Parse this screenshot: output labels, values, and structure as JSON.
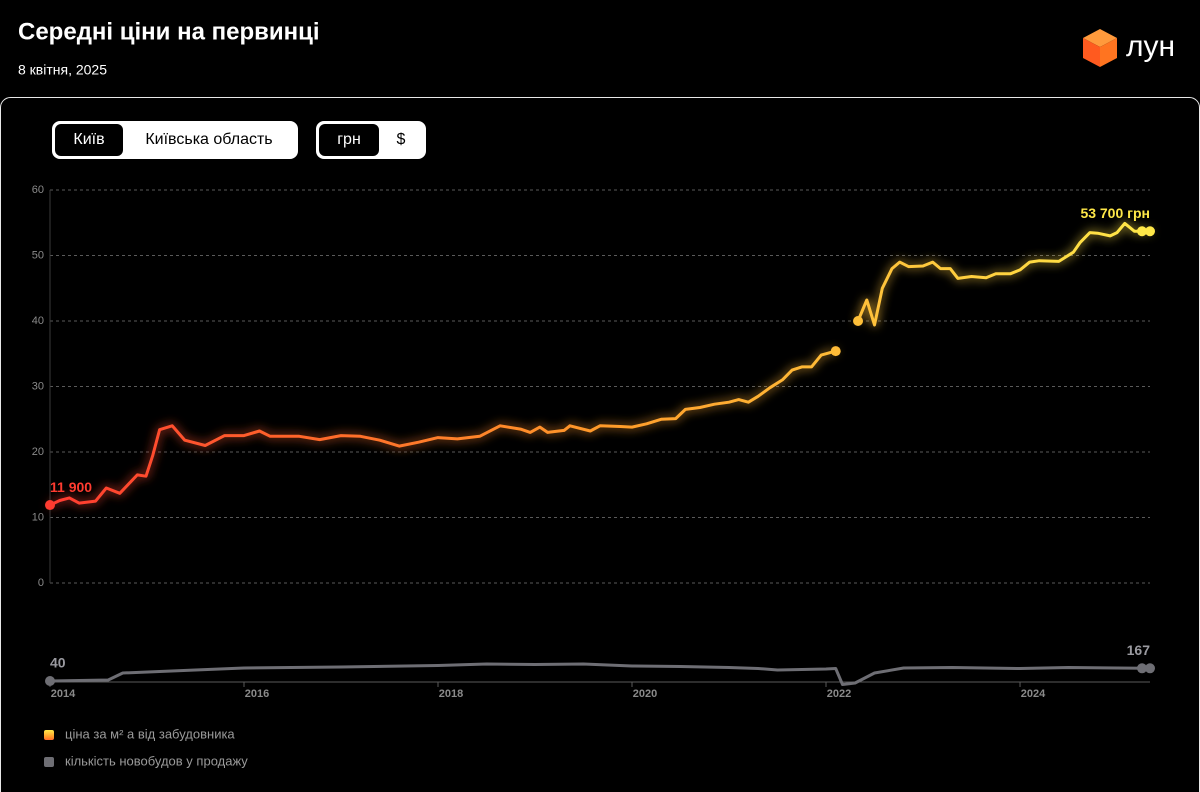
{
  "header": {
    "title": "Середні ціни на первинці",
    "date": "8 квітня, 2025",
    "logo": "лун"
  },
  "filters": {
    "region": [
      "Київ",
      "Київська область"
    ],
    "currency": [
      "грн",
      "$"
    ]
  },
  "chart_data": [
    {
      "type": "line",
      "grid": true,
      "xlim": [
        2014,
        2025.34
      ],
      "ylim": [
        0,
        60
      ],
      "yticks": [
        0,
        10,
        20,
        30,
        40,
        50,
        60
      ],
      "x": [
        2014.0,
        2014.1,
        2014.2,
        2014.3,
        2014.47,
        2014.58,
        2014.72,
        2014.9,
        2014.99,
        2015.06,
        2015.13,
        2015.26,
        2015.39,
        2015.6,
        2015.8,
        2016.0,
        2016.16,
        2016.27,
        2016.57,
        2016.78,
        2017.0,
        2017.2,
        2017.4,
        2017.6,
        2017.8,
        2018.0,
        2018.2,
        2018.43,
        2018.64,
        2018.85,
        2018.95,
        2019.05,
        2019.13,
        2019.3,
        2019.36,
        2019.57,
        2019.67,
        2019.88,
        2020.0,
        2020.15,
        2020.3,
        2020.45,
        2020.55,
        2020.7,
        2020.85,
        2021.0,
        2021.1,
        2021.2,
        2021.3,
        2021.42,
        2021.55,
        2021.65,
        2021.75,
        2021.85,
        2021.95,
        2022.1,
        2022.2,
        2022.33,
        2022.42,
        2022.5,
        2022.58,
        2022.68,
        2022.76,
        2022.85,
        2023.0,
        2023.1,
        2023.18,
        2023.28,
        2023.36,
        2023.5,
        2023.65,
        2023.75,
        2023.9,
        2024.0,
        2024.1,
        2024.2,
        2024.4,
        2024.55,
        2024.62,
        2024.72,
        2024.8,
        2024.93,
        2025.0,
        2025.08,
        2025.18,
        2025.34
      ],
      "series": [
        {
          "name": "ціна за м² а від забудовника",
          "gradient": [
            "#ff3b30",
            "#ff6a2b",
            "#ff9a2a",
            "#ffc23a",
            "#ffe848"
          ],
          "values": [
            11.9,
            12.6,
            13.0,
            12.2,
            12.5,
            14.5,
            13.7,
            16.5,
            16.3,
            19.5,
            23.4,
            24.0,
            21.8,
            21.0,
            22.5,
            22.5,
            23.2,
            22.4,
            22.4,
            21.9,
            22.5,
            22.4,
            21.8,
            20.9,
            21.5,
            22.2,
            22.0,
            22.4,
            24.0,
            23.5,
            23.0,
            23.8,
            23.0,
            23.3,
            24.0,
            23.2,
            24.0,
            23.9,
            23.8,
            24.3,
            25.0,
            25.1,
            26.5,
            26.8,
            27.3,
            27.6,
            28.0,
            27.6,
            28.5,
            29.8,
            31.0,
            32.5,
            33.0,
            33.0,
            34.8,
            35.4,
            null,
            40.0,
            43.2,
            39.4,
            45.0,
            48.0,
            49.0,
            48.3,
            48.4,
            49.0,
            48.0,
            48.0,
            46.5,
            46.8,
            46.6,
            47.2,
            47.2,
            47.8,
            49.0,
            49.2,
            49.1,
            50.5,
            52.0,
            53.5,
            53.4,
            53.0,
            53.5,
            54.9,
            53.7,
            53.7
          ],
          "value_labels": [
            "11 900",
            null,
            null,
            null,
            null,
            null,
            null,
            null,
            null,
            null,
            null,
            null,
            null,
            null,
            null,
            null,
            null,
            null,
            null,
            null,
            null,
            null,
            null,
            null,
            null,
            null,
            null,
            null,
            null,
            null,
            null,
            null,
            null,
            null,
            null,
            null,
            null,
            null,
            null,
            null,
            null,
            null,
            null,
            null,
            null,
            null,
            null,
            null,
            null,
            null,
            null,
            null,
            null,
            null,
            null,
            null,
            null,
            null,
            null,
            null,
            null,
            null,
            null,
            null,
            null,
            null,
            null,
            null,
            null,
            null,
            null,
            null,
            null,
            null,
            null,
            null,
            null,
            null,
            null,
            null,
            null,
            null,
            null,
            null,
            null,
            "53 700 грн"
          ]
        }
      ]
    },
    {
      "type": "line",
      "xlim": [
        2014,
        2025.34
      ],
      "ylim": [
        0,
        350
      ],
      "xticks": [
        2014,
        2016,
        2018,
        2020,
        2022,
        2024
      ],
      "x": [
        2014.0,
        2014.6,
        2014.75,
        2015.5,
        2016.0,
        2017.0,
        2018.0,
        2018.5,
        2019.0,
        2019.5,
        2020.0,
        2020.5,
        2021.0,
        2021.3,
        2021.5,
        2022.0,
        2022.1,
        2022.17,
        2022.3,
        2022.5,
        2022.8,
        2023.3,
        2024.0,
        2024.5,
        2025.0,
        2025.34
      ],
      "series": [
        {
          "name": "кількість новобудов у продажу",
          "color": "#6e6e74",
          "values": [
            40,
            50,
            120,
            150,
            170,
            180,
            195,
            210,
            205,
            210,
            190,
            185,
            175,
            165,
            150,
            160,
            165,
            5,
            20,
            120,
            170,
            175,
            165,
            175,
            170,
            167
          ]
        }
      ]
    }
  ]
}
